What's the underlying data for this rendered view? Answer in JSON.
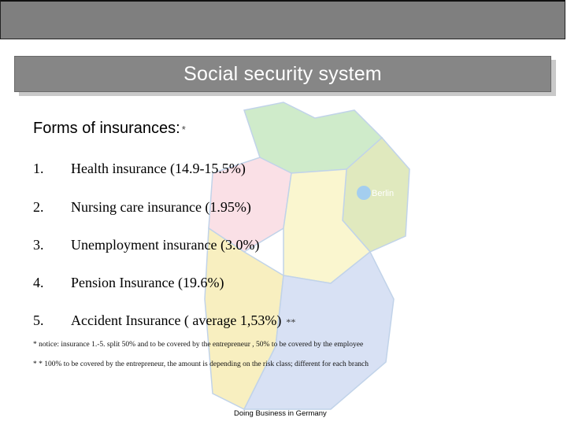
{
  "title": "Social security system",
  "forms_heading": "Forms of insurances:",
  "forms_heading_mark": "*",
  "list": [
    {
      "num": "1.",
      "text": "Health insurance (14.9-15.5%)"
    },
    {
      "num": "2.",
      "text": "Nursing care insurance (1.95%)"
    },
    {
      "num": "3.",
      "text": "Unemployment insurance (3.0%)"
    },
    {
      "num": "4.",
      "text": "Pension Insurance (19.6%)"
    },
    {
      "num": "5.",
      "text": "Accident Insurance ( average 1,53%)",
      "mark": "**"
    }
  ],
  "footnotes": [
    "* notice: insurance 1.-5. split 50% and to be covered by the entrepreneur , 50%  to be covered by the employee",
    "* * 100% to be covered by the entrepreneur, the amount is depending on the risk class; different for each branch"
  ],
  "map": {
    "label": "Berlin",
    "colors": {
      "north": "#a9dca0",
      "east": "#c7d88a",
      "west": "#f6c7d2",
      "center": "#f7f0a8",
      "south": "#b9c9ec",
      "southwest": "#f3e38d",
      "berlin": "#5aa7e3"
    }
  },
  "footer": "Doing Business in Germany"
}
